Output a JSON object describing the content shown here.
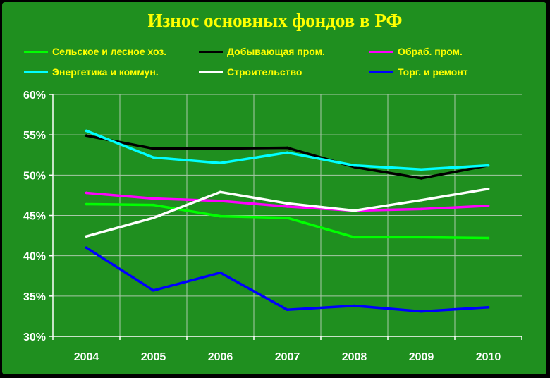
{
  "chart_data": {
    "type": "line",
    "title": "Износ основных фондов в РФ",
    "xlabel": "",
    "ylabel": "",
    "categories": [
      "2004",
      "2005",
      "2006",
      "2007",
      "2008",
      "2009",
      "2010"
    ],
    "ylim": [
      30,
      60
    ],
    "yticks": [
      30,
      35,
      40,
      45,
      50,
      55,
      60
    ],
    "ytick_labels": [
      "30%",
      "35%",
      "40%",
      "45%",
      "50%",
      "55%",
      "60%"
    ],
    "grid": true,
    "legend_position": "top",
    "series": [
      {
        "name": "Сельское и лесное хоз.",
        "color": "#00ff00",
        "values": [
          46.4,
          46.3,
          44.9,
          44.7,
          42.3,
          42.3,
          42.2
        ]
      },
      {
        "name": "Добывающая пром.",
        "color": "#000000",
        "values": [
          54.9,
          53.3,
          53.3,
          53.4,
          51.0,
          49.6,
          51.2
        ]
      },
      {
        "name": "Обраб. пром.",
        "color": "#ff00ff",
        "values": [
          47.8,
          47.1,
          46.8,
          46.1,
          45.6,
          45.8,
          46.2
        ]
      },
      {
        "name": "Энергетика и коммун.",
        "color": "#00ffff",
        "values": [
          55.5,
          52.2,
          51.5,
          52.8,
          51.2,
          50.7,
          51.2
        ]
      },
      {
        "name": "Строительство",
        "color": "#ffffff",
        "values": [
          42.4,
          44.7,
          47.9,
          46.5,
          45.6,
          46.9,
          48.3
        ]
      },
      {
        "name": "Торг. и ремонт",
        "color": "#0000ff",
        "values": [
          41.0,
          35.7,
          37.9,
          33.3,
          33.8,
          33.1,
          33.6
        ]
      }
    ]
  }
}
